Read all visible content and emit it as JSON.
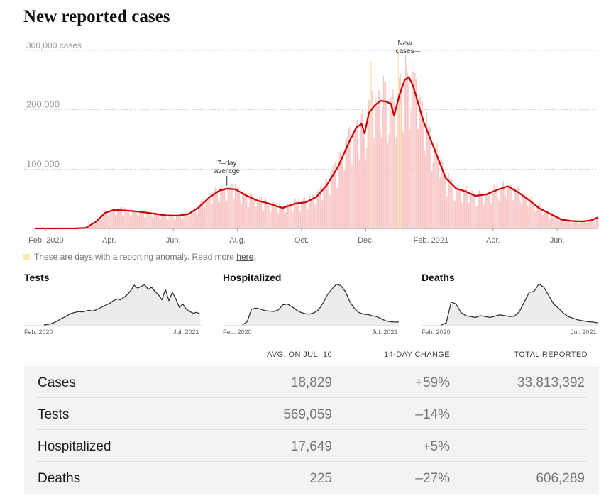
{
  "title": "New reported cases",
  "anomaly_note": {
    "text": "These are days with a reporting anomaly. Read more ",
    "link": "here",
    "suffix": "."
  },
  "colors": {
    "bars": "#f9c5c5",
    "anomaly": "#fbe7b2",
    "line": "#cc0000",
    "small_line": "#333333",
    "small_fill": "#ececec"
  },
  "chart_data": [
    {
      "type": "bar",
      "title": "New reported cases",
      "units_label": "300,000 cases",
      "yticks": [
        {
          "value": 300000,
          "label": "300,000 cases"
        },
        {
          "value": 200000,
          "label": "200,000"
        },
        {
          "value": 100000,
          "label": "100,000"
        }
      ],
      "ylim": [
        0,
        300000
      ],
      "xlim": [
        "2020-01-22",
        "2021-07-10"
      ],
      "xticks": [
        {
          "date": "2020-02-01",
          "label": "Feb. 2020"
        },
        {
          "date": "2020-04-01",
          "label": "Apr."
        },
        {
          "date": "2020-06-01",
          "label": "Jun."
        },
        {
          "date": "2020-08-01",
          "label": "Aug."
        },
        {
          "date": "2020-10-01",
          "label": "Oct."
        },
        {
          "date": "2020-12-01",
          "label": "Dec."
        },
        {
          "date": "2021-02-01",
          "label": "Feb. 2021"
        },
        {
          "date": "2021-04-01",
          "label": "Apr."
        },
        {
          "date": "2021-06-01",
          "label": "Jun."
        }
      ],
      "avg_series": {
        "name": "7-day average",
        "points": [
          [
            "2020-01-22",
            0
          ],
          [
            "2020-03-01",
            100
          ],
          [
            "2020-03-10",
            1000
          ],
          [
            "2020-03-20",
            12000
          ],
          [
            "2020-03-28",
            26000
          ],
          [
            "2020-04-05",
            31000
          ],
          [
            "2020-04-15",
            30500
          ],
          [
            "2020-04-25",
            29000
          ],
          [
            "2020-05-05",
            27000
          ],
          [
            "2020-05-15",
            24500
          ],
          [
            "2020-05-25",
            22000
          ],
          [
            "2020-06-05",
            21500
          ],
          [
            "2020-06-15",
            24000
          ],
          [
            "2020-06-25",
            35000
          ],
          [
            "2020-07-05",
            52000
          ],
          [
            "2020-07-15",
            64000
          ],
          [
            "2020-07-22",
            67000
          ],
          [
            "2020-07-30",
            66000
          ],
          [
            "2020-08-10",
            55000
          ],
          [
            "2020-08-20",
            47000
          ],
          [
            "2020-08-31",
            42000
          ],
          [
            "2020-09-08",
            37000
          ],
          [
            "2020-09-13",
            34500
          ],
          [
            "2020-09-25",
            42000
          ],
          [
            "2020-10-05",
            44000
          ],
          [
            "2020-10-15",
            53000
          ],
          [
            "2020-10-25",
            73000
          ],
          [
            "2020-11-05",
            105000
          ],
          [
            "2020-11-15",
            145000
          ],
          [
            "2020-11-22",
            170000
          ],
          [
            "2020-11-27",
            176000
          ],
          [
            "2020-11-30",
            160000
          ],
          [
            "2020-12-04",
            195000
          ],
          [
            "2020-12-10",
            208000
          ],
          [
            "2020-12-15",
            215000
          ],
          [
            "2020-12-20",
            214000
          ],
          [
            "2020-12-25",
            210000
          ],
          [
            "2020-12-28",
            190000
          ],
          [
            "2021-01-02",
            225000
          ],
          [
            "2021-01-07",
            250000
          ],
          [
            "2021-01-11",
            255000
          ],
          [
            "2021-01-15",
            240000
          ],
          [
            "2021-01-25",
            180000
          ],
          [
            "2021-02-05",
            130000
          ],
          [
            "2021-02-15",
            85000
          ],
          [
            "2021-02-25",
            67000
          ],
          [
            "2021-03-05",
            63000
          ],
          [
            "2021-03-15",
            55000
          ],
          [
            "2021-03-25",
            57000
          ],
          [
            "2021-04-05",
            65000
          ],
          [
            "2021-04-15",
            71000
          ],
          [
            "2021-04-25",
            61000
          ],
          [
            "2021-05-05",
            48000
          ],
          [
            "2021-05-15",
            34000
          ],
          [
            "2021-05-25",
            25000
          ],
          [
            "2021-06-05",
            15000
          ],
          [
            "2021-06-15",
            12500
          ],
          [
            "2021-06-25",
            12000
          ],
          [
            "2021-07-03",
            13500
          ],
          [
            "2021-07-10",
            18829
          ]
        ]
      },
      "annotations": [
        {
          "label": "7–day average",
          "date": "2020-07-22"
        },
        {
          "label": "New cases",
          "date": "2020-12-22"
        }
      ]
    },
    {
      "type": "area",
      "title": "Tests",
      "x_start": "Feb. 2020",
      "x_end": "Jul. 2021",
      "ylim": [
        0,
        100
      ],
      "values": [
        0,
        1,
        3,
        6,
        10,
        15,
        19,
        24,
        28,
        30,
        32,
        31,
        33,
        35,
        33,
        36,
        40,
        44,
        48,
        52,
        58,
        62,
        60,
        66,
        72,
        82,
        95,
        88,
        92,
        96,
        85,
        90,
        80,
        72,
        60,
        85,
        58,
        78,
        62,
        42,
        50,
        38,
        32,
        28,
        30,
        26
      ]
    },
    {
      "type": "area",
      "title": "Hospitalized",
      "x_start": "Feb. 2020",
      "x_end": "Jul. 2021",
      "ylim": [
        0,
        100
      ],
      "values": [
        0,
        8,
        38,
        40,
        38,
        34,
        33,
        32,
        36,
        48,
        50,
        44,
        36,
        30,
        27,
        26,
        29,
        36,
        52,
        72,
        86,
        97,
        94,
        80,
        56,
        40,
        30,
        26,
        25,
        22,
        20,
        15,
        10,
        8,
        7,
        7
      ]
    },
    {
      "type": "area",
      "title": "Deaths",
      "x_start": "Feb. 2020",
      "x_end": "Jul. 2021",
      "ylim": [
        0,
        100
      ],
      "values": [
        0,
        5,
        55,
        50,
        30,
        22,
        20,
        18,
        22,
        20,
        18,
        21,
        24,
        22,
        20,
        21,
        32,
        55,
        78,
        80,
        98,
        90,
        70,
        50,
        40,
        28,
        20,
        16,
        12,
        10,
        8,
        7,
        5
      ]
    }
  ],
  "table": {
    "headers": {
      "avg": "AVG. ON JUL. 10",
      "change": "14-DAY CHANGE",
      "total": "TOTAL REPORTED"
    },
    "rows": [
      {
        "name": "Cases",
        "avg": "18,829",
        "change": "+59%",
        "total": "33,813,392"
      },
      {
        "name": "Tests",
        "avg": "569,059",
        "change": "–14%",
        "total": "—"
      },
      {
        "name": "Hospitalized",
        "avg": "17,649",
        "change": "+5%",
        "total": "—"
      },
      {
        "name": "Deaths",
        "avg": "225",
        "change": "–27%",
        "total": "606,289"
      }
    ]
  }
}
